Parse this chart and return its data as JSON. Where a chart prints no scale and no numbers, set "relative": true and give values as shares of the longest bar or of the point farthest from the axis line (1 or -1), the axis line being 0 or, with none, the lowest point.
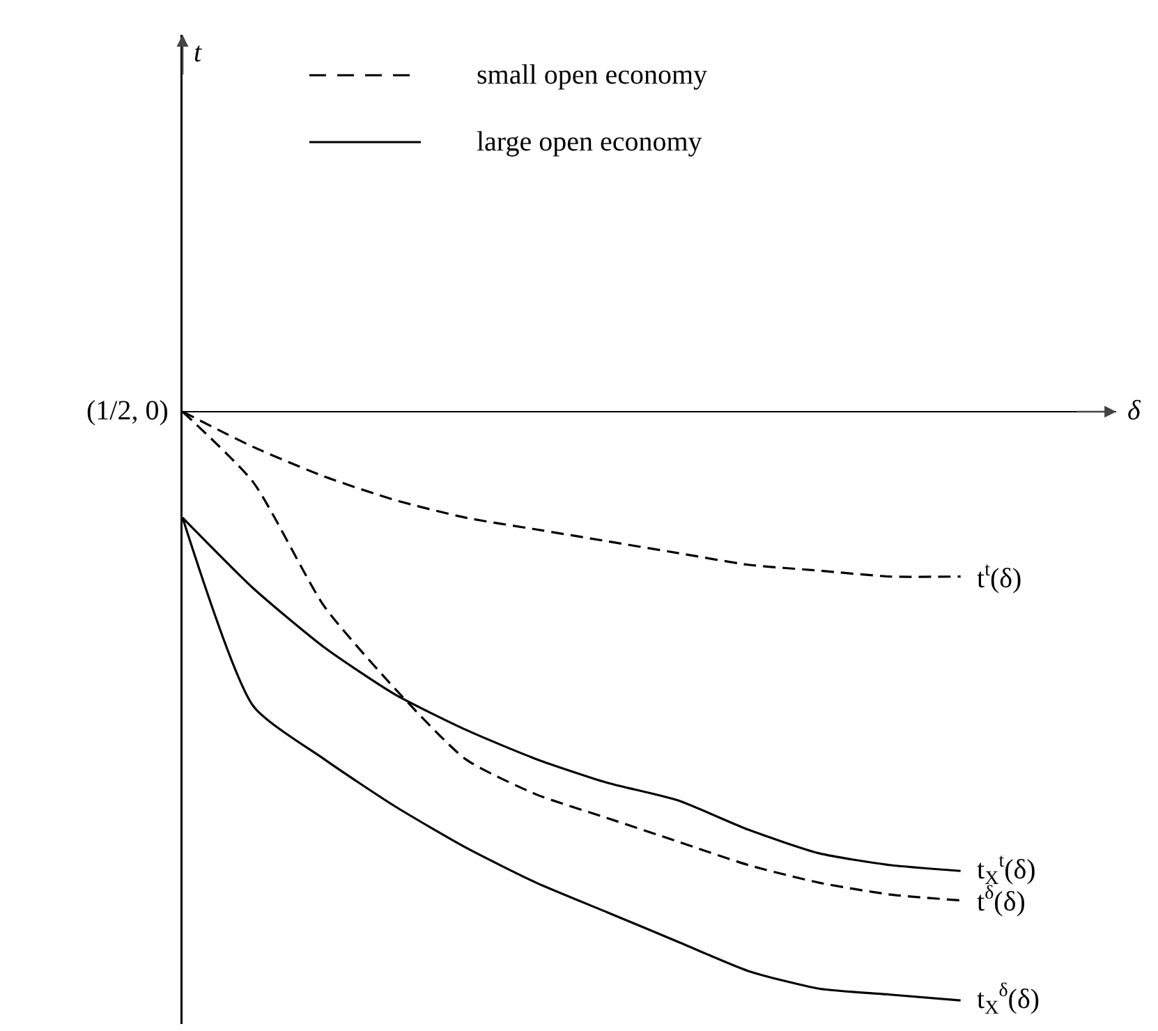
{
  "chart_data": {
    "type": "line",
    "relative": true,
    "xlabel": "δ",
    "categories": [
      null,
      null,
      null,
      null,
      null,
      null,
      null,
      null,
      null,
      null,
      null,
      null
    ],
    "series": [
      {
        "name": "t$^{t}$(δ)",
        "color": "#000000",
        "line_style": "dashed",
        "values": [
          0,
          -0.06,
          -0.11,
          -0.15,
          -0.18,
          -0.2,
          -0.22,
          -0.24,
          -0.26,
          -0.27,
          -0.28,
          -0.28
        ]
      },
      {
        "name": "t$^{δ}$(δ)",
        "color": "#000000",
        "line_style": "dashed",
        "values": [
          0,
          -0.12,
          -0.33,
          -0.47,
          -0.59,
          -0.65,
          -0.69,
          -0.73,
          -0.77,
          -0.8,
          -0.82,
          -0.83
        ]
      },
      {
        "name": "t$_{X}$$^{t}$(δ)",
        "color": "#000000",
        "line_style": "solid",
        "values": [
          -0.18,
          -0.3,
          -0.4,
          -0.48,
          -0.54,
          -0.59,
          -0.63,
          -0.66,
          -0.71,
          -0.75,
          -0.77,
          -0.78
        ]
      },
      {
        "name": "t$_{X}$$^{δ}$(δ)",
        "color": "#000000",
        "line_style": "solid",
        "values": [
          -0.18,
          -0.5,
          -0.59,
          -0.67,
          -0.74,
          -0.8,
          -0.85,
          -0.9,
          -0.95,
          -0.98,
          -0.99,
          -1
        ]
      }
    ],
    "annotations": [
      "t",
      "(1/2, 0)",
      "small open economy",
      "large open economy"
    ],
    "marker": "none",
    "grid": false,
    "legend": false
  }
}
